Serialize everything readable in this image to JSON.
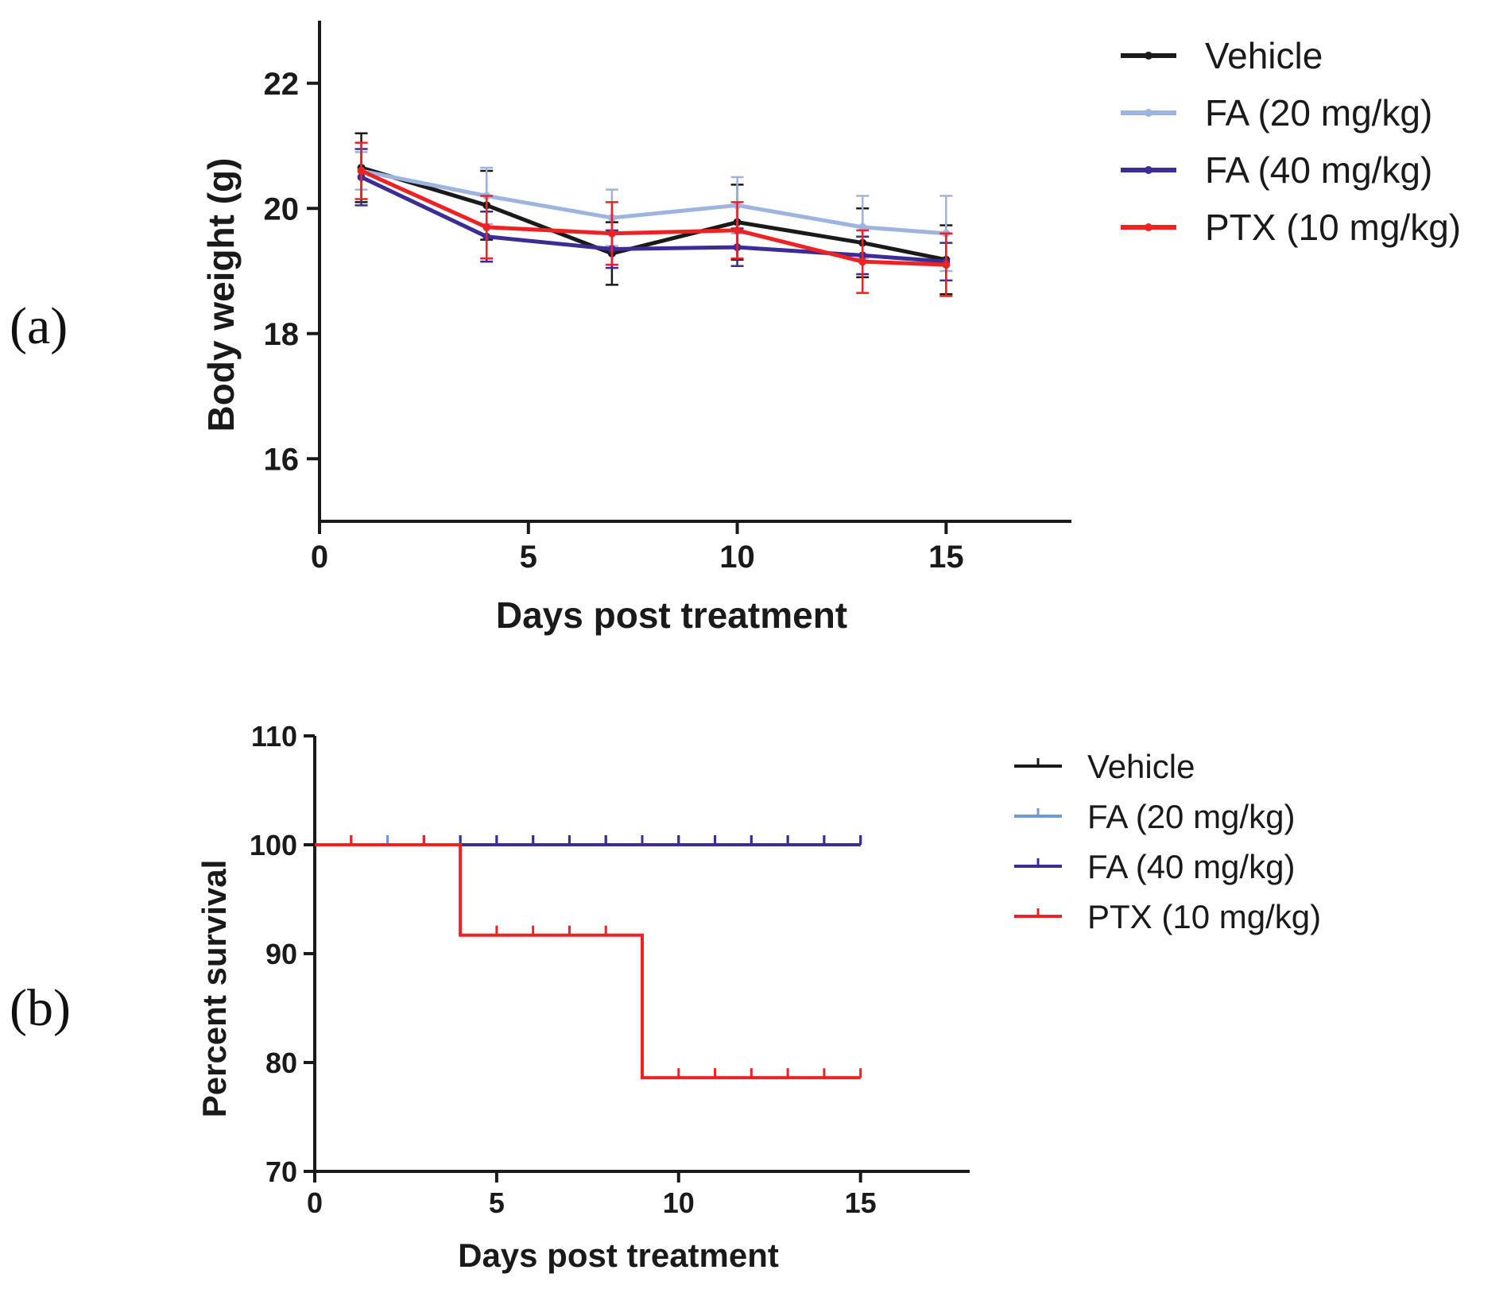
{
  "panels": {
    "a_label": "(a)",
    "b_label": "(b)"
  },
  "chart_data": [
    {
      "type": "line",
      "panel": "(a)",
      "xlabel": "Days post treatment",
      "ylabel": "Body weight (g)",
      "xlim": [
        0,
        18
      ],
      "ylim": [
        15,
        23
      ],
      "xticks": [
        "0",
        "5",
        "10",
        "15"
      ],
      "yticks": [
        "16",
        "18",
        "20",
        "22"
      ],
      "legend_position": "top-right",
      "series": [
        {
          "name": "Vehicle",
          "color": "#1a1a1a",
          "marker": "circle",
          "x": [
            1,
            4,
            7,
            10,
            13,
            15
          ],
          "y": [
            20.65,
            20.05,
            19.28,
            19.78,
            19.45,
            19.18
          ],
          "err": [
            0.55,
            0.55,
            0.5,
            0.6,
            0.55,
            0.55
          ]
        },
        {
          "name": "FA (20 mg/kg)",
          "color": "#9db4e0",
          "marker": "square",
          "x": [
            1,
            4,
            7,
            10,
            13,
            15
          ],
          "y": [
            20.6,
            20.2,
            19.85,
            20.05,
            19.7,
            19.6
          ],
          "err": [
            0.3,
            0.45,
            0.45,
            0.45,
            0.5,
            0.6
          ]
        },
        {
          "name": "FA (40 mg/kg)",
          "color": "#3b2c96",
          "marker": "triangle",
          "x": [
            1,
            4,
            7,
            10,
            13,
            15
          ],
          "y": [
            20.5,
            19.55,
            19.35,
            19.38,
            19.25,
            19.15
          ],
          "err": [
            0.45,
            0.4,
            0.3,
            0.3,
            0.3,
            0.3
          ]
        },
        {
          "name": "PTX (10 mg/kg)",
          "color": "#ee2222",
          "marker": "triangle-down",
          "x": [
            1,
            4,
            7,
            10,
            13,
            15
          ],
          "y": [
            20.6,
            19.7,
            19.6,
            19.65,
            19.15,
            19.1
          ],
          "err": [
            0.45,
            0.5,
            0.5,
            0.45,
            0.5,
            0.5
          ]
        }
      ]
    },
    {
      "type": "line",
      "step": true,
      "panel": "(b)",
      "xlabel": "Days post treatment",
      "ylabel": "Percent survival",
      "xlim": [
        0,
        18
      ],
      "ylim": [
        70,
        110
      ],
      "xticks": [
        "0",
        "5",
        "10",
        "15"
      ],
      "yticks": [
        "70",
        "80",
        "90",
        "100",
        "110"
      ],
      "legend_position": "top-right",
      "series": [
        {
          "name": "Vehicle",
          "color": "#1a1a1a",
          "steps": [
            [
              0,
              100
            ],
            [
              15,
              100
            ]
          ],
          "censor": [
            1,
            2,
            3,
            4,
            5,
            6,
            7,
            8,
            9,
            10,
            11,
            12,
            13,
            14,
            15
          ]
        },
        {
          "name": "FA (20 mg/kg)",
          "color": "#6f9ad6",
          "steps": [
            [
              0,
              100
            ],
            [
              15,
              100
            ]
          ],
          "censor": [
            1,
            2,
            3,
            4,
            5,
            6,
            7,
            8,
            9,
            10,
            11,
            12,
            13,
            14,
            15
          ]
        },
        {
          "name": "FA (40 mg/kg)",
          "color": "#3b2c96",
          "steps": [
            [
              0,
              100
            ],
            [
              15,
              100
            ]
          ],
          "censor": [
            4,
            5,
            6,
            7,
            8,
            9,
            10,
            11,
            12,
            13,
            14,
            15
          ]
        },
        {
          "name": "PTX (10 mg/kg)",
          "color": "#ee2222",
          "steps": [
            [
              0,
              100
            ],
            [
              4,
              100
            ],
            [
              4,
              91.7
            ],
            [
              9,
              91.7
            ],
            [
              9,
              78.6
            ],
            [
              15,
              78.6
            ]
          ],
          "censor": [
            1,
            3,
            5,
            6,
            7,
            8,
            10,
            11,
            12,
            13,
            14,
            15
          ]
        }
      ]
    }
  ]
}
